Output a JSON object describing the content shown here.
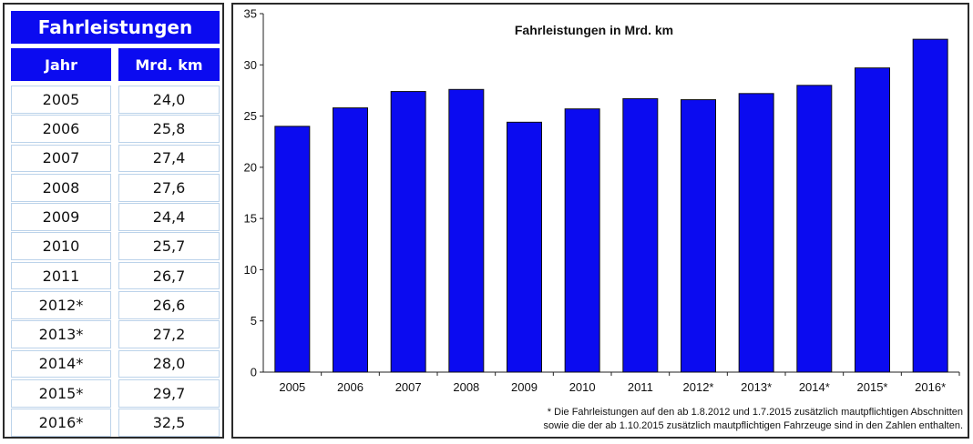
{
  "table": {
    "title": "Fahrleistungen",
    "col_year": "Jahr",
    "col_value": "Mrd. km",
    "rows": [
      {
        "year": "2005",
        "value": "24,0"
      },
      {
        "year": "2006",
        "value": "25,8"
      },
      {
        "year": "2007",
        "value": "27,4"
      },
      {
        "year": "2008",
        "value": "27,6"
      },
      {
        "year": "2009",
        "value": "24,4"
      },
      {
        "year": "2010",
        "value": "25,7"
      },
      {
        "year": "2011",
        "value": "26,7"
      },
      {
        "year": "2012*",
        "value": "26,6"
      },
      {
        "year": "2013*",
        "value": "27,2"
      },
      {
        "year": "2014*",
        "value": "28,0"
      },
      {
        "year": "2015*",
        "value": "29,7"
      },
      {
        "year": "2016*",
        "value": "32,5"
      }
    ]
  },
  "chart_data": {
    "type": "bar",
    "title": "Fahrleistungen in Mrd. km",
    "categories": [
      "2005",
      "2006",
      "2007",
      "2008",
      "2009",
      "2010",
      "2011",
      "2012*",
      "2013*",
      "2014*",
      "2015*",
      "2016*"
    ],
    "values": [
      24.0,
      25.8,
      27.4,
      27.6,
      24.4,
      25.7,
      26.7,
      26.6,
      27.2,
      28.0,
      29.7,
      32.5
    ],
    "ylim": [
      0,
      35
    ],
    "yticks": [
      0,
      5,
      10,
      15,
      20,
      25,
      30,
      35
    ],
    "xlabel": "",
    "ylabel": "",
    "grid": false,
    "bar_color": "#0b0bf0",
    "footnote_line1": "* Die Fahrleistungen auf den ab 1.8.2012 und 1.7.2015 zusätzlich mautpflichtigen Abschnitten",
    "footnote_line2": "sowie die der ab 1.10.2015 zusätzlich mautpflichtigen Fahrzeuge sind in den Zahlen enthalten."
  }
}
